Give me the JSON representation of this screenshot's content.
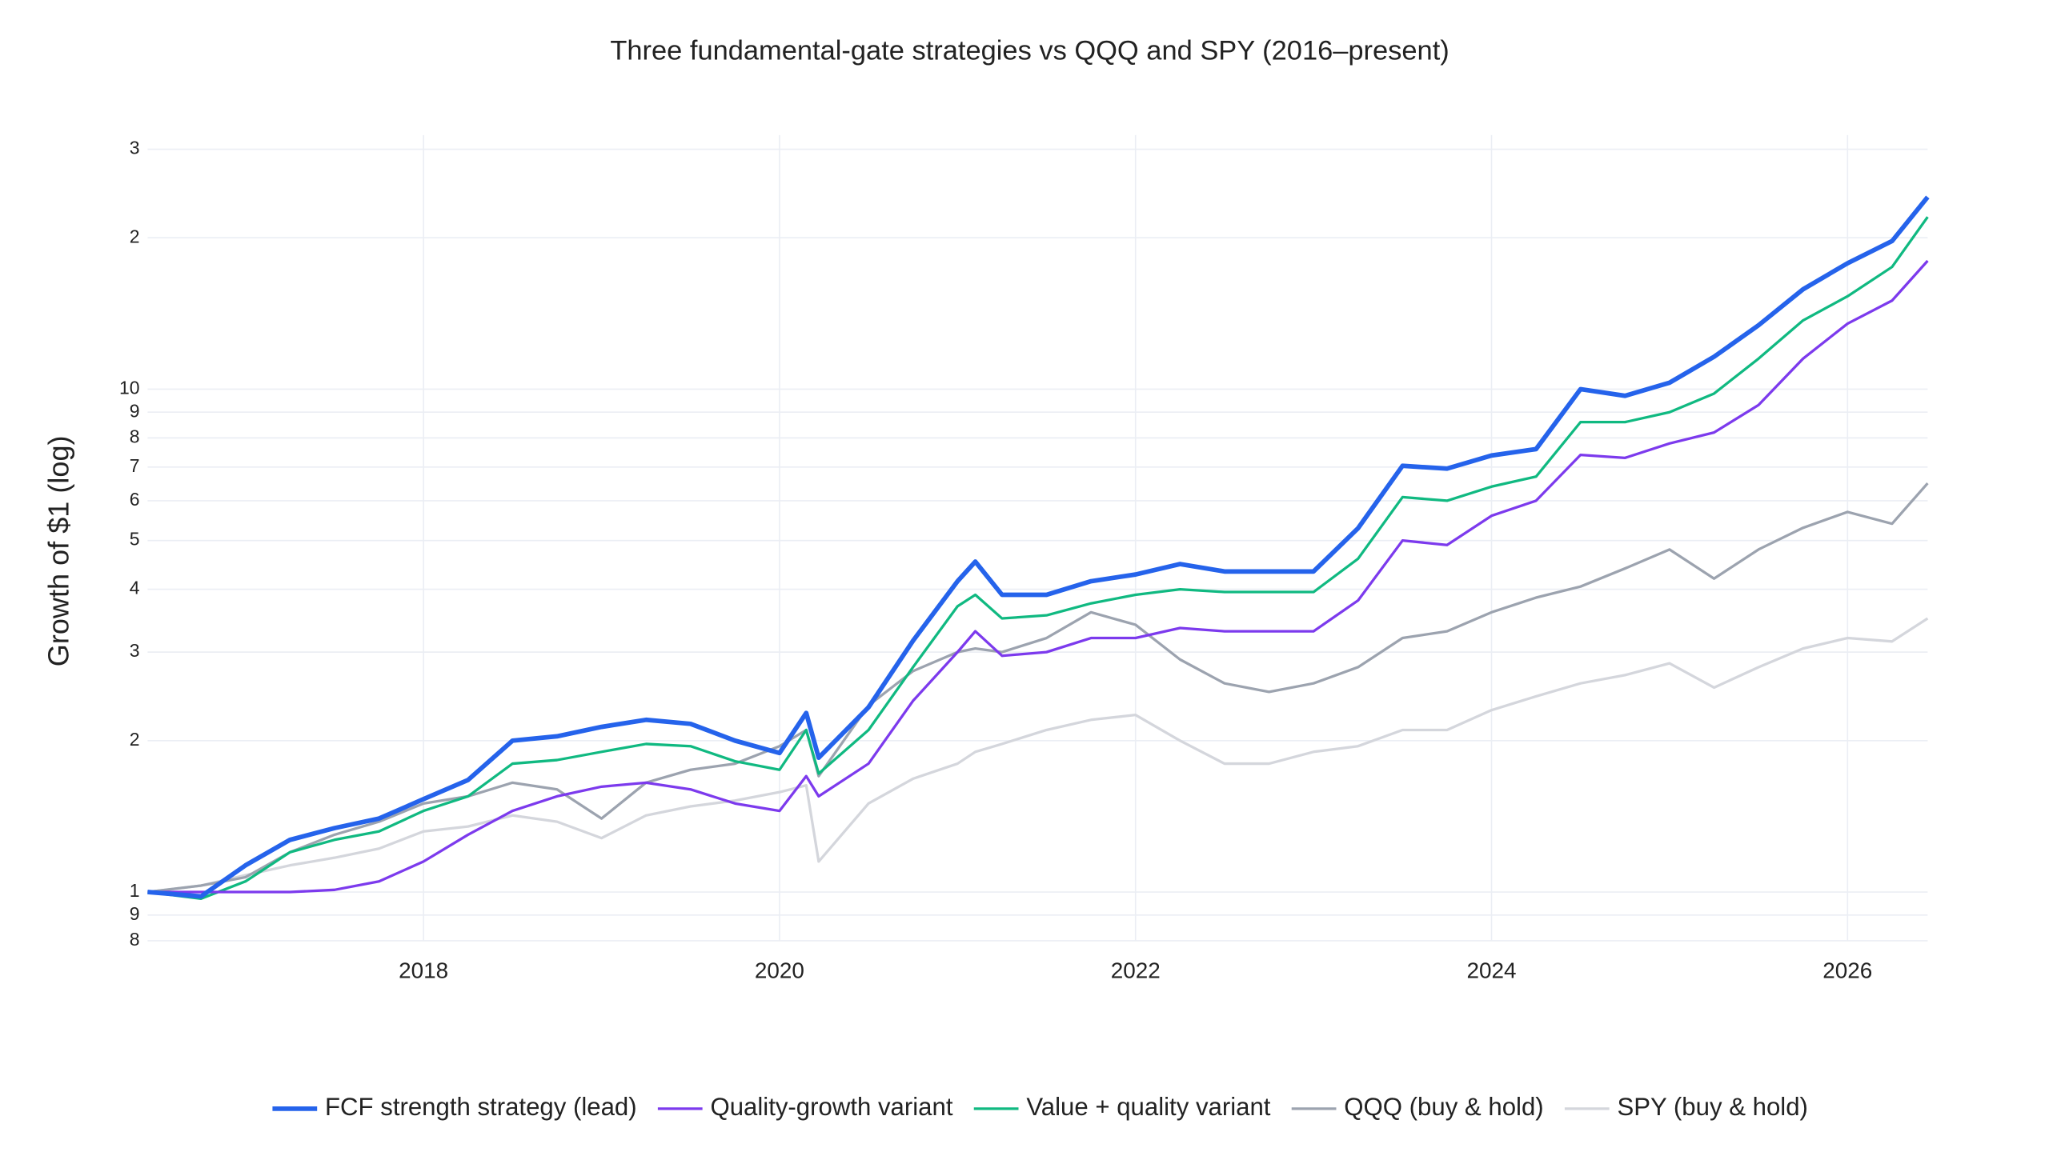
{
  "chart_data": {
    "type": "line",
    "title": "Three fundamental-gate strategies vs QQQ and SPY (2016–present)",
    "y_label": "Growth of $1 (log)",
    "log_y": true,
    "grid": true,
    "legend": "bottom",
    "xlim": [
      2016.45,
      2026.45
    ],
    "xticks": [
      2018,
      2020,
      2022,
      2024,
      2026
    ],
    "ylim": [
      0.8,
      32
    ],
    "yticks": [
      {
        "value": 0.8,
        "label": "8"
      },
      {
        "value": 0.9,
        "label": "9"
      },
      1,
      2,
      3,
      4,
      5,
      6,
      7,
      8,
      9,
      10,
      {
        "value": 20,
        "label": "2"
      },
      {
        "value": 30,
        "label": "3"
      }
    ],
    "x": [
      2016.45,
      2016.75,
      2017.0,
      2017.25,
      2017.5,
      2017.75,
      2018.0,
      2018.25,
      2018.5,
      2018.75,
      2019.0,
      2019.25,
      2019.5,
      2019.75,
      2020.0,
      2020.15,
      2020.22,
      2020.5,
      2020.75,
      2021.0,
      2021.1,
      2021.25,
      2021.5,
      2021.75,
      2022.0,
      2022.25,
      2022.5,
      2022.75,
      2023.0,
      2023.25,
      2023.5,
      2023.75,
      2024.0,
      2024.25,
      2024.5,
      2024.75,
      2025.0,
      2025.25,
      2025.5,
      2025.75,
      2026.0,
      2026.25,
      2026.45
    ],
    "series": [
      {
        "name": "SPY (buy & hold)",
        "color": "#d4d6dc",
        "width": 2,
        "values": [
          1.0,
          1.03,
          1.08,
          1.13,
          1.17,
          1.22,
          1.32,
          1.35,
          1.42,
          1.38,
          1.28,
          1.42,
          1.48,
          1.52,
          1.58,
          1.63,
          1.15,
          1.5,
          1.68,
          1.8,
          1.9,
          1.97,
          2.1,
          2.2,
          2.25,
          2.0,
          1.8,
          1.8,
          1.9,
          1.95,
          2.1,
          2.1,
          2.3,
          2.45,
          2.6,
          2.7,
          2.85,
          2.55,
          2.8,
          3.05,
          3.2,
          3.15,
          3.5
        ]
      },
      {
        "name": "QQQ (buy & hold)",
        "color": "#9ca3af",
        "width": 2,
        "values": [
          1.0,
          1.03,
          1.07,
          1.2,
          1.3,
          1.38,
          1.5,
          1.55,
          1.65,
          1.6,
          1.4,
          1.65,
          1.75,
          1.8,
          1.95,
          2.1,
          1.7,
          2.35,
          2.75,
          3.0,
          3.05,
          3.0,
          3.2,
          3.6,
          3.4,
          2.9,
          2.6,
          2.5,
          2.6,
          2.8,
          3.2,
          3.3,
          3.6,
          3.85,
          4.05,
          4.4,
          4.8,
          4.2,
          4.8,
          5.3,
          5.7,
          5.4,
          6.5
        ]
      },
      {
        "name": "Value + quality variant",
        "color": "#10b981",
        "width": 2,
        "values": [
          1.0,
          0.97,
          1.05,
          1.2,
          1.27,
          1.32,
          1.45,
          1.55,
          1.8,
          1.83,
          1.9,
          1.97,
          1.95,
          1.82,
          1.75,
          2.1,
          1.72,
          2.1,
          2.8,
          3.7,
          3.9,
          3.5,
          3.55,
          3.75,
          3.9,
          4.0,
          3.95,
          3.95,
          3.95,
          4.6,
          6.1,
          6.0,
          6.4,
          6.7,
          8.6,
          8.6,
          9.0,
          9.8,
          11.5,
          13.7,
          15.3,
          17.5,
          22.0
        ]
      },
      {
        "name": "Quality-growth variant",
        "color": "#7c3aed",
        "width": 2,
        "values": [
          1.0,
          1.0,
          1.0,
          1.0,
          1.01,
          1.05,
          1.15,
          1.3,
          1.45,
          1.55,
          1.62,
          1.65,
          1.6,
          1.5,
          1.45,
          1.7,
          1.55,
          1.8,
          2.4,
          3.0,
          3.3,
          2.95,
          3.0,
          3.2,
          3.2,
          3.35,
          3.3,
          3.3,
          3.3,
          3.8,
          5.0,
          4.9,
          5.6,
          6.0,
          7.4,
          7.3,
          7.8,
          8.2,
          9.3,
          11.5,
          13.5,
          15.0,
          18.0
        ]
      },
      {
        "name": "FCF strength strategy (lead)",
        "color": "#2563eb",
        "width": 3.5,
        "values": [
          1.0,
          0.98,
          1.13,
          1.27,
          1.34,
          1.4,
          1.53,
          1.67,
          2.0,
          2.04,
          2.13,
          2.2,
          2.16,
          2.0,
          1.89,
          2.27,
          1.85,
          2.33,
          3.16,
          4.15,
          4.54,
          3.9,
          3.9,
          4.15,
          4.28,
          4.49,
          4.34,
          4.34,
          4.34,
          5.29,
          7.04,
          6.95,
          7.38,
          7.6,
          10.0,
          9.7,
          10.3,
          11.6,
          13.4,
          15.8,
          17.8,
          19.7,
          24.1
        ]
      }
    ],
    "legend_order": [
      4,
      3,
      2,
      1,
      0
    ]
  }
}
